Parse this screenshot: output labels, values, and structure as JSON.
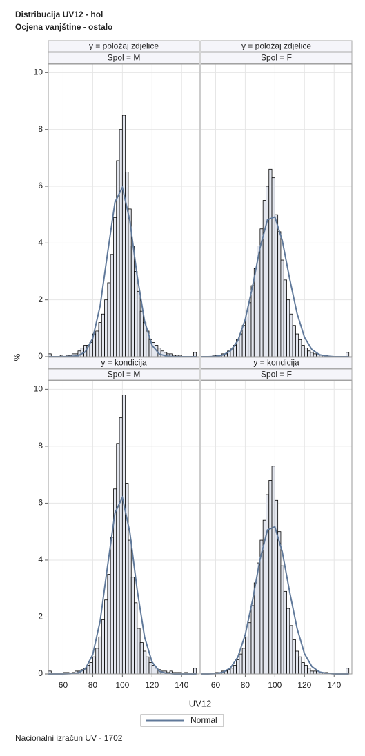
{
  "title": "Distribucija UV12 - hol",
  "subtitle": "Ocjena vanjštine - ostalo",
  "ylabel": "%",
  "xlabel": "UV12",
  "legend": [
    "Normal"
  ],
  "footnote": "Nacionalni izračun UV - 1702",
  "chart_data": [
    {
      "type": "histogram",
      "header": "y = položaj zdjelice",
      "subheader": "Spol = M",
      "bins": [
        50,
        52,
        54,
        56,
        58,
        60,
        62,
        64,
        66,
        68,
        70,
        72,
        74,
        76,
        78,
        80,
        82,
        84,
        86,
        88,
        90,
        92,
        94,
        96,
        98,
        100,
        102,
        104,
        106,
        108,
        110,
        112,
        114,
        116,
        118,
        120,
        122,
        124,
        126,
        128,
        130,
        132,
        134,
        136,
        138,
        140,
        142,
        144,
        146,
        148,
        150
      ],
      "values": [
        0.1,
        0,
        0,
        0,
        0.05,
        0,
        0.05,
        0.05,
        0.1,
        0.1,
        0.2,
        0.3,
        0.4,
        0.4,
        0.5,
        0.8,
        0.9,
        1.2,
        1.5,
        2.0,
        2.6,
        3.6,
        4.9,
        6.9,
        8.0,
        8.5,
        6.5,
        5.2,
        3.9,
        3.0,
        2.3,
        1.6,
        1.2,
        0.9,
        0.6,
        0.5,
        0.4,
        0.3,
        0.2,
        0.15,
        0.1,
        0.1,
        0.05,
        0.05,
        0.05,
        0,
        0,
        0,
        0,
        0.15
      ],
      "curve": {
        "x": [
          50,
          55,
          60,
          65,
          70,
          75,
          80,
          85,
          90,
          95,
          100,
          105,
          110,
          115,
          120,
          125,
          130,
          135,
          140,
          145,
          150
        ],
        "values": [
          0,
          0,
          0,
          0.01,
          0.03,
          0.17,
          0.65,
          1.79,
          3.64,
          5.44,
          5.96,
          4.8,
          2.84,
          1.24,
          0.4,
          0.09,
          0.02,
          0,
          0,
          0,
          0
        ],
        "color": "#60799a"
      },
      "color": "#e3e6ee",
      "xlim": [
        50,
        152
      ],
      "xticks": [
        60,
        80,
        100,
        120,
        140
      ],
      "ylim": [
        0,
        10.3
      ],
      "yticks": [
        0,
        2,
        4,
        6,
        8,
        10
      ],
      "grid": true
    },
    {
      "type": "histogram",
      "header": "y = položaj zdjelice",
      "subheader": "Spol = F",
      "bins": [
        50,
        52,
        54,
        56,
        58,
        60,
        62,
        64,
        66,
        68,
        70,
        72,
        74,
        76,
        78,
        80,
        82,
        84,
        86,
        88,
        90,
        92,
        94,
        96,
        98,
        100,
        102,
        104,
        106,
        108,
        110,
        112,
        114,
        116,
        118,
        120,
        122,
        124,
        126,
        128,
        130,
        132,
        134,
        136,
        138,
        140,
        142,
        144,
        146,
        148,
        150
      ],
      "values": [
        0,
        0,
        0,
        0,
        0.05,
        0.05,
        0.05,
        0.1,
        0.1,
        0.2,
        0.3,
        0.4,
        0.6,
        0.8,
        1.1,
        1.4,
        1.9,
        2.5,
        3.1,
        3.9,
        4.5,
        5.5,
        6.0,
        6.6,
        6.3,
        5.0,
        4.4,
        3.4,
        2.7,
        2.0,
        1.5,
        1.1,
        0.8,
        0.6,
        0.4,
        0.3,
        0.2,
        0.15,
        0.1,
        0.1,
        0.05,
        0.05,
        0.05,
        0,
        0,
        0,
        0,
        0,
        0,
        0.15
      ],
      "curve": {
        "x": [
          50,
          55,
          60,
          65,
          70,
          75,
          80,
          85,
          90,
          95,
          100,
          105,
          110,
          115,
          120,
          125,
          130,
          135,
          140,
          145,
          150
        ],
        "values": [
          0,
          0,
          0.01,
          0.06,
          0.2,
          0.56,
          1.31,
          2.49,
          3.84,
          4.82,
          4.92,
          4.09,
          2.74,
          1.52,
          0.68,
          0.25,
          0.07,
          0.02,
          0,
          0,
          0
        ],
        "color": "#60799a"
      },
      "color": "#e3e6ee",
      "xlim": [
        50,
        152
      ],
      "xticks": [
        60,
        80,
        100,
        120,
        140
      ],
      "ylim": [
        0,
        10.3
      ],
      "yticks": [
        0,
        2,
        4,
        6,
        8,
        10
      ],
      "grid": true
    },
    {
      "type": "histogram",
      "header": "y = kondicija",
      "subheader": "Spol = M",
      "bins": [
        50,
        52,
        54,
        56,
        58,
        60,
        62,
        64,
        66,
        68,
        70,
        72,
        74,
        76,
        78,
        80,
        82,
        84,
        86,
        88,
        90,
        92,
        94,
        96,
        98,
        100,
        102,
        104,
        106,
        108,
        110,
        112,
        114,
        116,
        118,
        120,
        122,
        124,
        126,
        128,
        130,
        132,
        134,
        136,
        138,
        140,
        142,
        144,
        146,
        148,
        150
      ],
      "values": [
        0.1,
        0,
        0,
        0,
        0,
        0.05,
        0.05,
        0,
        0.05,
        0.1,
        0.1,
        0.15,
        0.2,
        0.3,
        0.4,
        0.6,
        0.9,
        1.3,
        1.9,
        2.6,
        3.5,
        4.8,
        6.5,
        8.1,
        9.0,
        9.8,
        6.7,
        4.7,
        3.4,
        2.5,
        1.6,
        1.1,
        0.8,
        0.6,
        0.4,
        0.3,
        0.2,
        0.15,
        0.1,
        0.1,
        0.05,
        0.1,
        0.05,
        0.05,
        0.05,
        0,
        0.05,
        0,
        0,
        0.2
      ],
      "curve": {
        "x": [
          50,
          55,
          60,
          65,
          70,
          75,
          80,
          85,
          90,
          95,
          100,
          105,
          110,
          115,
          120,
          125,
          130,
          135,
          140,
          145,
          150
        ],
        "values": [
          0,
          0,
          0,
          0.01,
          0.03,
          0.18,
          0.68,
          1.86,
          3.79,
          5.66,
          6.2,
          4.99,
          2.95,
          1.29,
          0.42,
          0.09,
          0.02,
          0,
          0,
          0,
          0
        ],
        "color": "#60799a"
      },
      "color": "#e3e6ee",
      "xlim": [
        50,
        152
      ],
      "xticks": [
        60,
        80,
        100,
        120,
        140
      ],
      "ylim": [
        0,
        10.3
      ],
      "yticks": [
        0,
        2,
        4,
        6,
        8,
        10
      ],
      "grid": true
    },
    {
      "type": "histogram",
      "header": "y = kondicija",
      "subheader": "Spol = F",
      "bins": [
        50,
        52,
        54,
        56,
        58,
        60,
        62,
        64,
        66,
        68,
        70,
        72,
        74,
        76,
        78,
        80,
        82,
        84,
        86,
        88,
        90,
        92,
        94,
        96,
        98,
        100,
        102,
        104,
        106,
        108,
        110,
        112,
        114,
        116,
        118,
        120,
        122,
        124,
        126,
        128,
        130,
        132,
        134,
        136,
        138,
        140,
        142,
        144,
        146,
        148,
        150
      ],
      "values": [
        0,
        0,
        0,
        0,
        0,
        0.05,
        0.05,
        0.1,
        0.1,
        0.15,
        0.2,
        0.3,
        0.5,
        0.7,
        0.9,
        1.3,
        1.8,
        2.4,
        3.2,
        3.9,
        4.7,
        5.4,
        6.3,
        6.8,
        7.3,
        6.1,
        5.0,
        3.8,
        2.9,
        2.3,
        1.7,
        1.2,
        0.8,
        0.6,
        0.4,
        0.3,
        0.2,
        0.1,
        0.1,
        0.1,
        0.05,
        0.05,
        0.05,
        0,
        0,
        0,
        0,
        0,
        0,
        0.2
      ],
      "curve": {
        "x": [
          50,
          55,
          60,
          65,
          70,
          75,
          80,
          85,
          90,
          95,
          100,
          105,
          110,
          115,
          120,
          125,
          130,
          135,
          140,
          145,
          150
        ],
        "values": [
          0,
          0,
          0.01,
          0.06,
          0.21,
          0.59,
          1.38,
          2.61,
          4.03,
          5.06,
          5.17,
          4.29,
          2.88,
          1.6,
          0.71,
          0.26,
          0.07,
          0.02,
          0,
          0,
          0
        ],
        "color": "#60799a"
      },
      "color": "#e3e6ee",
      "xlim": [
        50,
        152
      ],
      "xticks": [
        60,
        80,
        100,
        120,
        140
      ],
      "ylim": [
        0,
        10.3
      ],
      "yticks": [
        0,
        2,
        4,
        6,
        8,
        10
      ],
      "grid": true
    }
  ]
}
